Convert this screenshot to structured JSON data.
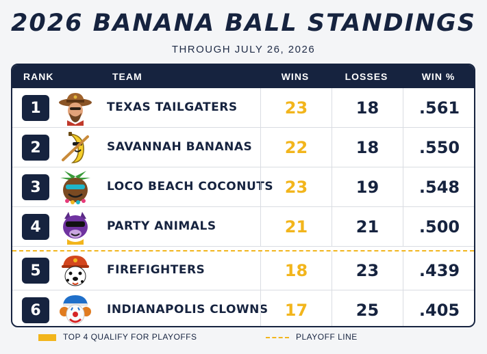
{
  "title": "2026 BANANA BALL STANDINGS",
  "subtitle": "THROUGH JULY 26, 2026",
  "headers": {
    "rank": "RANK",
    "team": "TEAM",
    "wins": "WINS",
    "losses": "LOSSES",
    "pct": "WIN %"
  },
  "rows": [
    {
      "rank": "1",
      "team": "TEXAS TAILGATERS",
      "wins": "23",
      "losses": "18",
      "pct": ".561",
      "logo": "cowboy-mascot-icon"
    },
    {
      "rank": "2",
      "team": "SAVANNAH BANANAS",
      "wins": "22",
      "losses": "18",
      "pct": ".550",
      "logo": "banana-mascot-icon"
    },
    {
      "rank": "3",
      "team": "LOCO BEACH COCONUTS",
      "wins": "23",
      "losses": "19",
      "pct": ".548",
      "logo": "coconut-mascot-icon"
    },
    {
      "rank": "4",
      "team": "PARTY ANIMALS",
      "wins": "21",
      "losses": "21",
      "pct": ".500",
      "logo": "party-animal-mascot-icon"
    },
    {
      "rank": "5",
      "team": "FIREFIGHTERS",
      "wins": "18",
      "losses": "23",
      "pct": ".439",
      "logo": "dalmatian-firefighter-mascot-icon"
    },
    {
      "rank": "6",
      "team": "INDIANAPOLIS CLOWNS",
      "wins": "17",
      "losses": "25",
      "pct": ".405",
      "logo": "clown-mascot-icon"
    }
  ],
  "legend": {
    "qualify": "TOP 4 QUALIFY FOR PLAYOFFS",
    "line": "PLAYOFF LINE"
  },
  "colors": {
    "navy": "#16233f",
    "gold": "#f2b51c"
  }
}
